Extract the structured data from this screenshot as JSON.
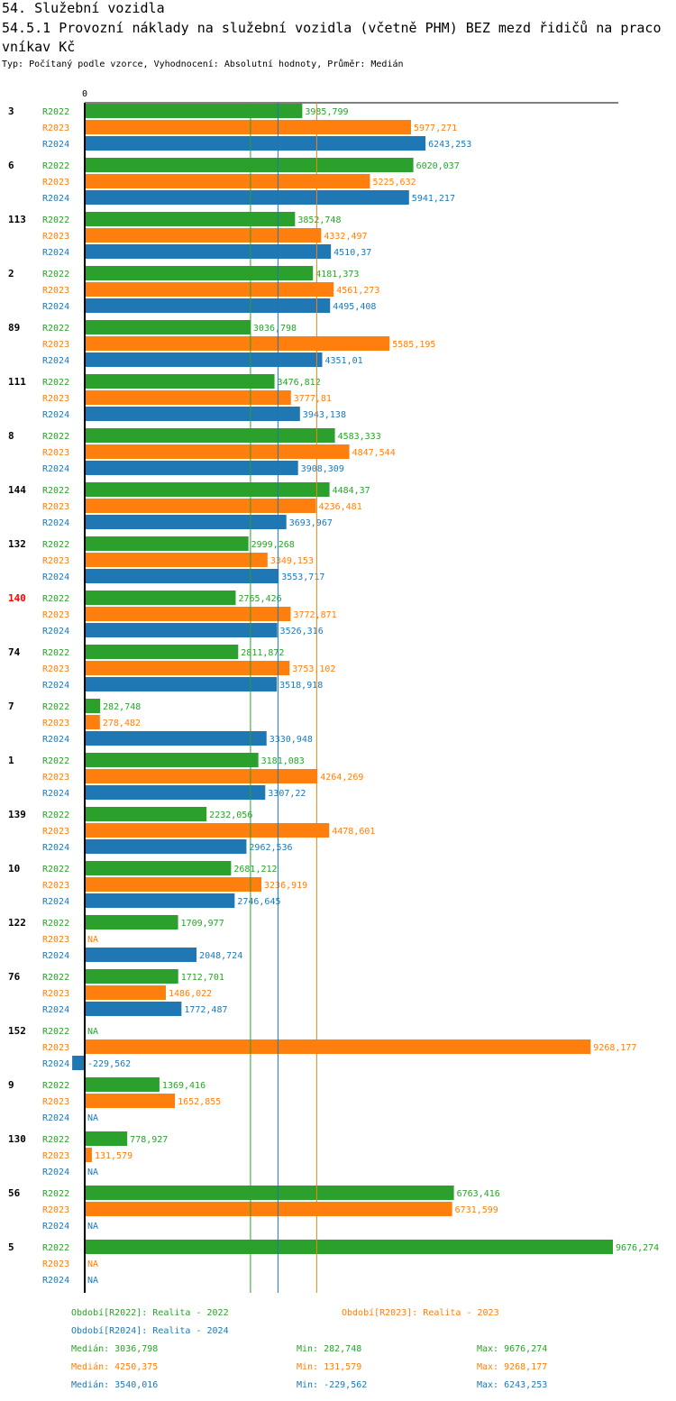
{
  "header": {
    "title": "54. Služební vozidla",
    "subtitle_line1": "54.5.1 Provozní náklady na služební vozidla (včetně PHM) BEZ mezd řidičů na praco",
    "subtitle_line2": "vníkav Kč",
    "info": "Typ: Počítaný podle vzorce, Vyhodnocení: Absolutní hodnoty, Průměr: Medián"
  },
  "colors": {
    "R2022": "#2ca02c",
    "R2023": "#ff7f0e",
    "R2024": "#1f77b4",
    "highlight": "#ff0000"
  },
  "chart_data": {
    "type": "bar",
    "orientation": "horizontal",
    "zero_label": "0",
    "xlim": [
      0,
      9676.274
    ],
    "series_names": [
      "R2022",
      "R2023",
      "R2024"
    ],
    "highlight_group": "140",
    "groups": [
      {
        "id": "3",
        "values": [
          3985.799,
          5977.271,
          6243.253
        ],
        "labels": [
          "3985,799",
          "5977,271",
          "6243,253"
        ]
      },
      {
        "id": "6",
        "values": [
          6020.037,
          5225.632,
          5941.217
        ],
        "labels": [
          "6020,037",
          "5225,632",
          "5941,217"
        ]
      },
      {
        "id": "113",
        "values": [
          3852.748,
          4332.497,
          4510.37
        ],
        "labels": [
          "3852,748",
          "4332,497",
          "4510,37"
        ]
      },
      {
        "id": "2",
        "values": [
          4181.373,
          4561.273,
          4495.408
        ],
        "labels": [
          "4181,373",
          "4561,273",
          "4495,408"
        ]
      },
      {
        "id": "89",
        "values": [
          3036.798,
          5585.195,
          4351.01
        ],
        "labels": [
          "3036,798",
          "5585,195",
          "4351,01"
        ]
      },
      {
        "id": "111",
        "values": [
          3476.812,
          3777.81,
          3943.138
        ],
        "labels": [
          "3476,812",
          "3777,81",
          "3943,138"
        ]
      },
      {
        "id": "8",
        "values": [
          4583.333,
          4847.544,
          3908.309
        ],
        "labels": [
          "4583,333",
          "4847,544",
          "3908,309"
        ]
      },
      {
        "id": "144",
        "values": [
          4484.37,
          4236.481,
          3693.967
        ],
        "labels": [
          "4484,37",
          "4236,481",
          "3693,967"
        ]
      },
      {
        "id": "132",
        "values": [
          2999.268,
          3349.153,
          3553.717
        ],
        "labels": [
          "2999,268",
          "3349,153",
          "3553,717"
        ]
      },
      {
        "id": "140",
        "values": [
          2765.426,
          3772.871,
          3526.316
        ],
        "labels": [
          "2765,426",
          "3772,871",
          "3526,316"
        ]
      },
      {
        "id": "74",
        "values": [
          2811.872,
          3753.102,
          3518.918
        ],
        "labels": [
          "2811,872",
          "3753,102",
          "3518,918"
        ]
      },
      {
        "id": "7",
        "values": [
          282.748,
          278.482,
          3330.948
        ],
        "labels": [
          "282,748",
          "278,482",
          "3330,948"
        ]
      },
      {
        "id": "1",
        "values": [
          3181.083,
          4264.269,
          3307.22
        ],
        "labels": [
          "3181,083",
          "4264,269",
          "3307,22"
        ]
      },
      {
        "id": "139",
        "values": [
          2232.056,
          4478.601,
          2962.536
        ],
        "labels": [
          "2232,056",
          "4478,601",
          "2962,536"
        ]
      },
      {
        "id": "10",
        "values": [
          2681.212,
          3236.919,
          2746.645
        ],
        "labels": [
          "2681,212",
          "3236,919",
          "2746,645"
        ]
      },
      {
        "id": "122",
        "values": [
          1709.977,
          null,
          2048.724
        ],
        "labels": [
          "1709,977",
          "NA",
          "2048,724"
        ]
      },
      {
        "id": "76",
        "values": [
          1712.701,
          1486.022,
          1772.487
        ],
        "labels": [
          "1712,701",
          "1486,022",
          "1772,487"
        ]
      },
      {
        "id": "152",
        "values": [
          null,
          9268.177,
          -229.562
        ],
        "labels": [
          "NA",
          "9268,177",
          "-229,562"
        ]
      },
      {
        "id": "9",
        "values": [
          1369.416,
          1652.855,
          null
        ],
        "labels": [
          "1369,416",
          "1652,855",
          "NA"
        ]
      },
      {
        "id": "130",
        "values": [
          778.927,
          131.579,
          null
        ],
        "labels": [
          "778,927",
          "131,579",
          "NA"
        ]
      },
      {
        "id": "56",
        "values": [
          6763.416,
          6731.599,
          null
        ],
        "labels": [
          "6763,416",
          "6731,599",
          "NA"
        ]
      },
      {
        "id": "5",
        "values": [
          9676.274,
          null,
          null
        ],
        "labels": [
          "9676,274",
          "NA",
          "NA"
        ]
      }
    ],
    "medians": [
      3036.798,
      4250.375,
      3540.016
    ]
  },
  "legend": {
    "period_2022": "Období[R2022]: Realita - 2022",
    "period_2023": "Období[R2023]: Realita - 2023",
    "period_2024": "Období[R2024]: Realita - 2024",
    "stats": [
      {
        "median": "Medián: 3036,798",
        "min": "Min: 282,748",
        "max": "Max: 9676,274"
      },
      {
        "median": "Medián: 4250,375",
        "min": "Min: 131,579",
        "max": "Max: 9268,177"
      },
      {
        "median": "Medián: 3540,016",
        "min": "Min: -229,562",
        "max": "Max: 6243,253"
      }
    ]
  }
}
